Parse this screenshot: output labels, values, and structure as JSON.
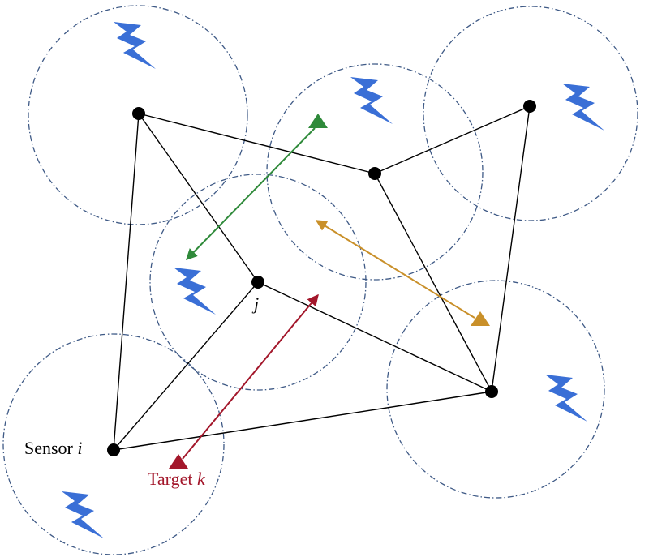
{
  "labels": {
    "sensor_text": "Sensor ",
    "sensor_var": "i",
    "target_text": "Target ",
    "target_var": "k",
    "node_j": "j"
  },
  "colors": {
    "edge": "#000000",
    "node": "#000000",
    "range_circle": "#3f5a86",
    "lightning": "#3a6fd6",
    "green_target": "#2f8a3a",
    "gold_target": "#c9902a",
    "red_target": "#a3172b",
    "background": "#ffffff"
  },
  "icons": {
    "sensor_node": "filled-circle",
    "range": "dash-dot-circle",
    "energy": "lightning-bolt-icon",
    "target": "triangle-icon"
  }
}
